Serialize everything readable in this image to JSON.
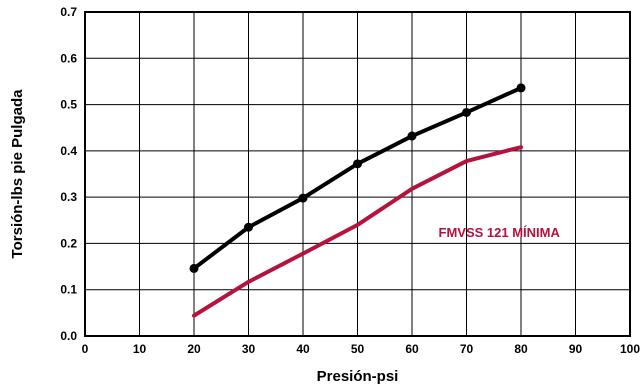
{
  "chart_data": {
    "type": "line",
    "title": "",
    "xlabel": "Presión-psi",
    "ylabel": "Torsión-lbs pie Pulgada",
    "xlim": [
      0,
      100
    ],
    "ylim": [
      0.0,
      0.7
    ],
    "x_ticks": [
      "0",
      "10",
      "20",
      "30",
      "40",
      "50",
      "60",
      "70",
      "80",
      "90",
      "100"
    ],
    "y_ticks": [
      "0.0",
      "0.1",
      "0.2",
      "0.3",
      "0.4",
      "0.5",
      "0.6",
      "0.7"
    ],
    "grid": true,
    "series": [
      {
        "color": "#000000",
        "markers": true,
        "x": [
          20,
          30,
          40,
          50,
          60,
          70,
          80
        ],
        "y": [
          0.146,
          0.235,
          0.298,
          0.372,
          0.432,
          0.483,
          0.536
        ]
      },
      {
        "name": "FMVSS 121 MÍNIMA",
        "color": "#b5123e",
        "markers": false,
        "x": [
          20,
          30,
          40,
          50,
          60,
          70,
          80
        ],
        "y": [
          0.044,
          0.117,
          0.178,
          0.24,
          0.318,
          0.378,
          0.408
        ]
      }
    ],
    "annotations": [
      {
        "text": "FMVSS 121 MÍNIMA",
        "x": 76,
        "y": 0.225,
        "color": "#b5123e"
      }
    ]
  }
}
